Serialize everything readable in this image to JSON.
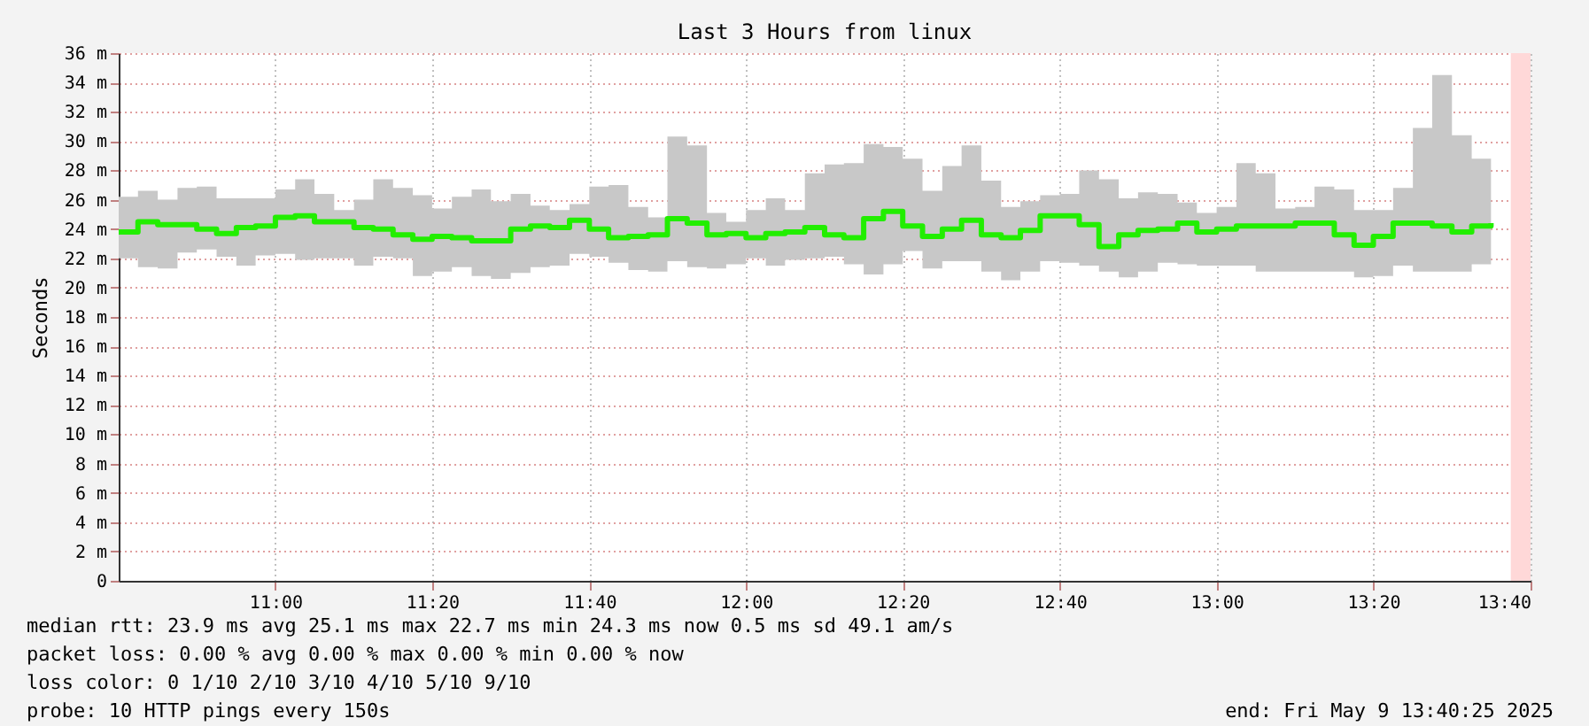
{
  "chart_data": {
    "type": "step",
    "title": "Last 3 Hours from linux",
    "ylabel": "Seconds",
    "x": [
      10.667,
      10.708,
      10.75,
      10.792,
      10.833,
      10.875,
      10.917,
      10.958,
      11.0,
      11.042,
      11.083,
      11.125,
      11.167,
      11.208,
      11.25,
      11.292,
      11.333,
      11.375,
      11.417,
      11.458,
      11.5,
      11.542,
      11.583,
      11.625,
      11.667,
      11.708,
      11.75,
      11.792,
      11.833,
      11.875,
      11.917,
      11.958,
      12.0,
      12.042,
      12.083,
      12.125,
      12.167,
      12.208,
      12.25,
      12.292,
      12.333,
      12.375,
      12.417,
      12.458,
      12.5,
      12.542,
      12.583,
      12.625,
      12.667,
      12.708,
      12.75,
      12.792,
      12.833,
      12.875,
      12.917,
      12.958,
      13.0,
      13.042,
      13.083,
      13.125,
      13.167,
      13.208,
      13.25,
      13.292,
      13.333,
      13.375,
      13.417,
      13.458,
      13.5,
      13.542,
      13.583
    ],
    "series": [
      {
        "color": "#22ee00",
        "values": [
          23.8,
          24.5,
          24.3,
          24.3,
          24.0,
          23.7,
          24.1,
          24.2,
          24.8,
          24.9,
          24.5,
          24.5,
          24.1,
          24.0,
          23.6,
          23.3,
          23.5,
          23.4,
          23.2,
          23.2,
          24.0,
          24.2,
          24.1,
          24.6,
          24.0,
          23.4,
          23.5,
          23.6,
          24.7,
          24.4,
          23.6,
          23.7,
          23.4,
          23.7,
          23.8,
          24.1,
          23.6,
          23.4,
          24.7,
          25.2,
          24.2,
          23.5,
          24.0,
          24.6,
          23.6,
          23.4,
          23.9,
          24.9,
          24.9,
          24.3,
          22.8,
          23.6,
          23.9,
          24.0,
          24.4,
          23.8,
          24.0,
          24.2,
          24.2,
          24.2,
          24.4,
          24.4,
          23.6,
          22.9,
          23.5,
          24.4,
          24.4,
          24.2,
          23.8,
          24.2,
          24.4
        ],
        "lower": [
          22.0,
          21.4,
          21.3,
          22.4,
          22.6,
          22.1,
          21.5,
          22.2,
          22.3,
          21.9,
          22.0,
          22.0,
          21.5,
          22.1,
          22.0,
          20.8,
          21.1,
          21.4,
          20.8,
          20.6,
          21.0,
          21.4,
          21.5,
          22.3,
          22.1,
          21.7,
          21.2,
          21.1,
          21.8,
          21.4,
          21.3,
          21.6,
          22.0,
          21.5,
          21.9,
          22.0,
          22.1,
          21.6,
          20.9,
          21.6,
          22.5,
          21.3,
          21.8,
          21.8,
          21.1,
          20.5,
          21.1,
          21.8,
          21.7,
          21.5,
          21.1,
          20.7,
          21.1,
          21.7,
          21.6,
          21.5,
          21.5,
          21.5,
          21.1,
          21.1,
          21.1,
          21.1,
          21.1,
          20.7,
          20.8,
          21.5,
          21.1,
          21.1,
          21.1,
          21.6,
          21.3
        ],
        "upper": [
          26.2,
          26.6,
          26.0,
          26.8,
          26.9,
          26.1,
          26.1,
          26.1,
          26.7,
          27.4,
          26.4,
          25.3,
          26.0,
          27.4,
          26.8,
          26.3,
          25.4,
          26.2,
          26.7,
          25.9,
          26.4,
          25.6,
          25.3,
          25.7,
          26.9,
          27.0,
          25.5,
          24.8,
          30.3,
          29.7,
          25.1,
          24.5,
          25.3,
          26.1,
          25.3,
          27.8,
          28.4,
          28.5,
          29.8,
          29.6,
          28.8,
          26.6,
          28.3,
          29.7,
          27.3,
          25.5,
          25.9,
          26.3,
          26.4,
          28.0,
          27.4,
          26.1,
          26.5,
          26.4,
          25.8,
          25.1,
          25.5,
          28.5,
          27.8,
          25.4,
          25.5,
          26.9,
          26.7,
          25.3,
          25.3,
          26.8,
          30.9,
          34.5,
          30.4,
          28.8,
          31.7
        ]
      }
    ],
    "xlim": [
      10.667,
      13.667
    ],
    "xticks": [
      {
        "value": 11.0,
        "label": "11:00"
      },
      {
        "value": 11.333,
        "label": "11:20"
      },
      {
        "value": 11.667,
        "label": "11:40"
      },
      {
        "value": 12.0,
        "label": "12:00"
      },
      {
        "value": 12.333,
        "label": "12:20"
      },
      {
        "value": 12.667,
        "label": "12:40"
      },
      {
        "value": 13.0,
        "label": "13:00"
      },
      {
        "value": 13.333,
        "label": "13:20"
      },
      {
        "value": 13.667,
        "label": "13:40"
      }
    ],
    "ylim": [
      0,
      36
    ],
    "yticks": [
      0,
      {
        "value": 2,
        "label": "2 m"
      },
      {
        "value": 4,
        "label": "4 m"
      },
      {
        "value": 6,
        "label": "6 m"
      },
      {
        "value": 8,
        "label": "8 m"
      },
      {
        "value": 10,
        "label": "10 m"
      },
      {
        "value": 12,
        "label": "12 m"
      },
      {
        "value": 14,
        "label": "14 m"
      },
      {
        "value": 16,
        "label": "16 m"
      },
      {
        "value": 18,
        "label": "18 m"
      },
      {
        "value": 20,
        "label": "20 m"
      },
      {
        "value": 22,
        "label": "22 m"
      },
      {
        "value": 24,
        "label": "24 m"
      },
      {
        "value": 26,
        "label": "26 m"
      },
      {
        "value": 28,
        "label": "28 m"
      },
      {
        "value": 30,
        "label": "30 m"
      },
      {
        "value": 32,
        "label": "32 m"
      },
      {
        "value": 34,
        "label": "34 m"
      },
      {
        "value": 36,
        "label": "36 m"
      }
    ],
    "grid": true,
    "bands": [
      {
        "axis": "x",
        "from": 13.625,
        "to": 13.667,
        "color": "#ffd8d8"
      }
    ],
    "annotations": [
      "median rtt:  23.9 ms avg  25.1 ms max  22.7 ms min  24.3 ms now  0.5 ms sd  49.1   am/s",
      "packet loss: 0.00 % avg  0.00 % max  0.00 % min  0.00 % now",
      "loss color:  0  1/10  2/10  3/10  4/10  5/10  9/10",
      "probe:       10 HTTP pings every 150s",
      "end: Fri May  9 13:40:25 2025"
    ]
  }
}
